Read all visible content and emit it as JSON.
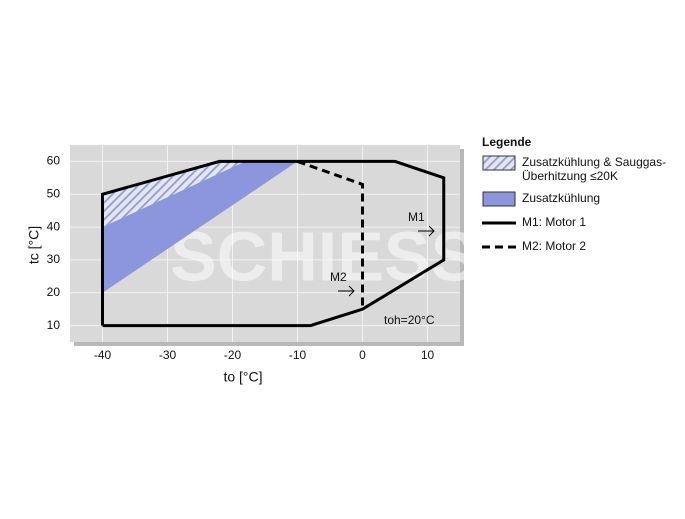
{
  "chart_data": {
    "type": "envelope",
    "x_label": "to [°C]",
    "y_label": "tc [°C]",
    "xlim": [
      -45,
      15
    ],
    "ylim": [
      5,
      65
    ],
    "xticks": [
      -40,
      -30,
      -20,
      -10,
      0,
      10
    ],
    "yticks": [
      10,
      20,
      30,
      40,
      50,
      60
    ],
    "grid": true,
    "legend_title": "Legende",
    "series": [
      {
        "name": "Zusatzkühlung & Sauggas-Überhitzung ≤20K",
        "style": "hatch",
        "color": "#8f9bd0",
        "x": [
          -40,
          -22,
          -18,
          -40
        ],
        "y": [
          50,
          60,
          60,
          40
        ]
      },
      {
        "name": "Zusatzkühlung",
        "style": "fill",
        "color": "#8c96dc",
        "x": [
          -40,
          -18,
          -10,
          -40
        ],
        "y": [
          40,
          60,
          60,
          20
        ]
      },
      {
        "name": "M1: Motor 1",
        "style": "solid",
        "color": "#000000",
        "x": [
          -40,
          -40,
          -22,
          5,
          12.5,
          12.5,
          0,
          -8,
          -40
        ],
        "y": [
          10,
          50,
          60,
          60,
          55,
          30,
          15,
          10,
          10
        ]
      },
      {
        "name": "M2: Motor 2",
        "style": "dashed",
        "color": "#000000",
        "x": [
          -10,
          0,
          0
        ],
        "y": [
          60,
          53,
          15
        ]
      }
    ],
    "annotations": [
      "M1",
      "M2",
      "toh=20°C"
    ],
    "watermark": "SCHIESSL"
  }
}
